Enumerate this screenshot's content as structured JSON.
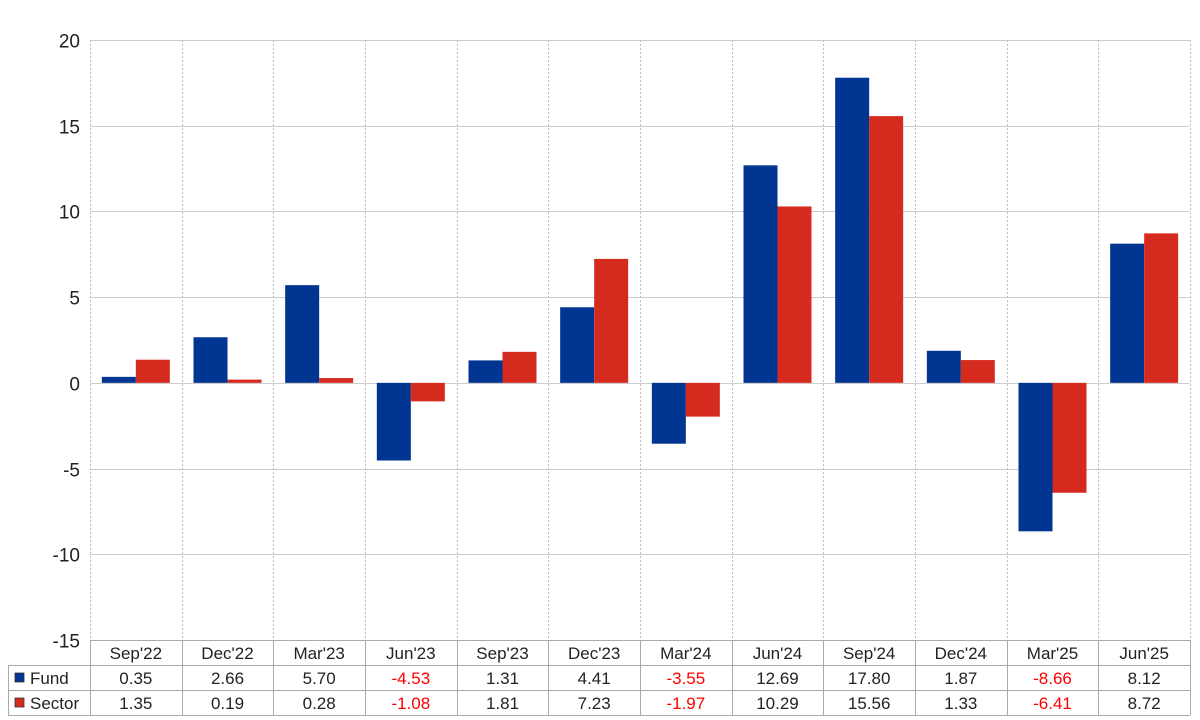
{
  "chart_data": {
    "type": "bar",
    "title": "",
    "xlabel": "",
    "ylabel": "",
    "ylim": [
      -15,
      20
    ],
    "yticks": [
      20,
      15,
      10,
      5,
      0,
      -5,
      -10,
      -15
    ],
    "grid": true,
    "categories": [
      "Sep'22",
      "Dec'22",
      "Mar'23",
      "Jun'23",
      "Sep'23",
      "Dec'23",
      "Mar'24",
      "Jun'24",
      "Sep'24",
      "Dec'24",
      "Mar'25",
      "Jun'25"
    ],
    "series": [
      {
        "name": "Fund",
        "color": "#003591",
        "values": [
          0.35,
          2.66,
          5.7,
          -4.53,
          1.31,
          4.41,
          -3.55,
          12.69,
          17.8,
          1.87,
          -8.66,
          8.12
        ],
        "labels": [
          "0.35",
          "2.66",
          "5.70",
          "-4.53",
          "1.31",
          "4.41",
          "-3.55",
          "12.69",
          "17.80",
          "1.87",
          "-8.66",
          "8.12"
        ]
      },
      {
        "name": "Sector",
        "color": "#d52b1e",
        "values": [
          1.35,
          0.19,
          0.28,
          -1.08,
          1.81,
          7.23,
          -1.97,
          10.29,
          15.56,
          1.33,
          -6.41,
          8.72
        ],
        "labels": [
          "1.35",
          "0.19",
          "0.28",
          "-1.08",
          "1.81",
          "7.23",
          "-1.97",
          "10.29",
          "15.56",
          "1.33",
          "-6.41",
          "8.72"
        ]
      }
    ],
    "negative_value_color": "#ff0000",
    "positive_value_color": "#222222"
  }
}
